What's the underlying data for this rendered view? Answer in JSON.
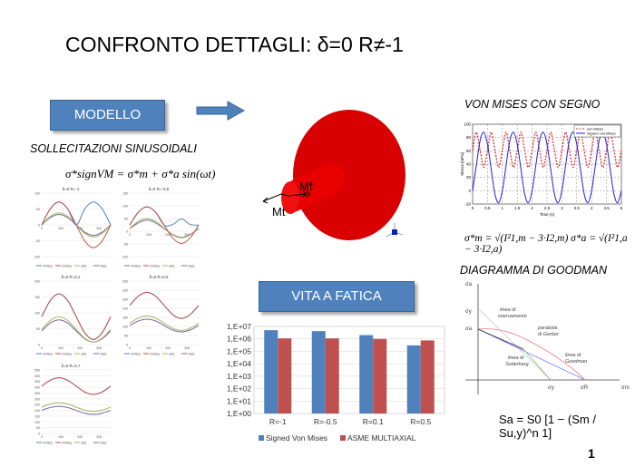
{
  "title": "CONFRONTO DETTAGLI: δ=0 R≠-1",
  "modello_label": "MODELLO",
  "sollecitazioni_label": "SOLLECITAZIONI SINUSOIDALI",
  "formula_signed": "σ*signVM = σ*m + σ*a sin(ωt)",
  "model_labels": {
    "mf": "Mf",
    "mt": "Mt"
  },
  "vita_label": "VITA A FATICA",
  "vonmises_label": "VON MISES CON SEGNO",
  "formula_vm": "σ*m = √(I²1,m − 3·I2,m)    σ*a = √(I²1,a − 3·I2,a)",
  "goodman_label": "DIAGRAMMA DI GOODMAN",
  "goodman": {
    "axis_y": "σa",
    "axis_x": "σm",
    "tick_y_top": "σy",
    "tick_y_mid": "σa",
    "tick_x_1": "σy",
    "tick_x_2": "σR",
    "line_snervamento": [
      "linea di",
      "snervamento"
    ],
    "parabola_gerber": [
      "parabola",
      "di Gerber"
    ],
    "linea_goodman": [
      "linea di",
      "Goodman"
    ],
    "linea_soderberg": [
      "linea di",
      "Soderberg"
    ],
    "formula": "Sa = S0 [1 − (Sm / Su,y)^n 1]"
  },
  "page_number": "1",
  "colors": {
    "blue": "#4f81bd",
    "red": "#c0504d",
    "green": "#9bbb59",
    "purple": "#8064a2",
    "model_red": "#e00000"
  },
  "chart_data": [
    {
      "type": "bar",
      "yscale": "log",
      "categories": [
        "R=-1",
        "R=-0.5",
        "R=0.1",
        "R=0.5"
      ],
      "yticks": [
        "1,E+00",
        "1,E+01",
        "1,E+02",
        "1,E+03",
        "1,E+04",
        "1,E+05",
        "1,E+06",
        "1,E+07"
      ],
      "ylim": [
        1,
        10000000
      ],
      "legend_position": "bottom",
      "series": [
        {
          "name": "Signed Von Mises",
          "values": [
            5000000,
            4200000,
            2000000,
            300000
          ]
        },
        {
          "name": "ASME MULTIAXIAL",
          "values": [
            1100000,
            1100000,
            1000000,
            750000
          ]
        }
      ]
    },
    {
      "type": "line",
      "xlabel": "Time (s)",
      "ylabel": "Stress [mPa]",
      "xlim": [
        0,
        5
      ],
      "ylim": [
        -20,
        100
      ],
      "xticks": [
        "0",
        "0.5",
        "1",
        "1.5",
        "2",
        "2.5",
        "3",
        "3.5",
        "4",
        "4.5",
        "5"
      ],
      "yticks": [
        "-20",
        "0",
        "20",
        "40",
        "60",
        "80",
        "100"
      ],
      "grid": true,
      "legend_position": "top-right",
      "x": [
        0,
        0.125,
        0.25,
        0.375,
        0.5,
        0.625,
        0.75,
        0.875,
        1,
        1.125,
        1.25,
        1.375,
        1.5,
        1.625,
        1.75,
        1.875,
        2,
        2.125,
        2.25,
        2.375,
        2.5,
        2.625,
        2.75,
        2.875,
        3,
        3.125,
        3.25,
        3.375,
        3.5,
        3.625,
        3.75,
        3.875,
        4,
        4.125,
        4.25,
        4.375,
        4.5,
        4.625,
        4.75,
        4.875,
        5
      ],
      "series": [
        {
          "name": "von Mises",
          "values": [
            61,
            88,
            61,
            35,
            61,
            88,
            61,
            35,
            61,
            88,
            61,
            35,
            61,
            88,
            61,
            35,
            61,
            88,
            61,
            35,
            61,
            88,
            61,
            35,
            61,
            88,
            61,
            35,
            61,
            88,
            61,
            35,
            61,
            88,
            61,
            35,
            61,
            88,
            61,
            35,
            61
          ]
        },
        {
          "name": "Signed von Mises",
          "values": [
            0,
            38,
            75,
            88,
            70,
            32,
            -5,
            -18,
            0,
            38,
            75,
            88,
            70,
            32,
            -5,
            -18,
            0,
            38,
            75,
            88,
            70,
            32,
            -5,
            -18,
            0,
            38,
            75,
            88,
            70,
            32,
            -5,
            -18,
            0,
            38,
            75,
            88,
            70,
            32,
            -5,
            -18,
            0
          ]
        }
      ]
    },
    {
      "type": "line",
      "title": "δ=0 R=-1",
      "ylim": [
        -100,
        100
      ],
      "yticks": [
        "-100",
        "-50",
        "0",
        "50",
        "100"
      ],
      "xticks": [
        "0",
        "100",
        "200",
        "300"
      ],
      "x": [
        0,
        45,
        90,
        135,
        180,
        225,
        270,
        315,
        360
      ],
      "series": [
        {
          "name": "σVM(t)",
          "values": [
            0,
            51,
            72,
            51,
            0,
            51,
            72,
            51,
            0
          ]
        },
        {
          "name": "σVMeq",
          "values": [
            0,
            51,
            72,
            51,
            0,
            -51,
            -72,
            -51,
            0
          ]
        },
        {
          "name": "σI(t)",
          "values": [
            0,
            27,
            38,
            27,
            0,
            -27,
            -38,
            -27,
            0
          ]
        },
        {
          "name": "σII(t)",
          "values": [
            0,
            23,
            33,
            23,
            0,
            -23,
            -33,
            -23,
            0
          ]
        }
      ]
    },
    {
      "type": "line",
      "title": "δ=0 R=-0,5",
      "ylim": [
        -100,
        150
      ],
      "yticks": [
        "-100",
        "-50",
        "0",
        "50",
        "100",
        "150"
      ],
      "xticks": [
        "0",
        "100",
        "200",
        "300"
      ],
      "x": [
        0,
        45,
        90,
        135,
        180,
        225,
        270,
        315,
        360
      ],
      "series": [
        {
          "name": "σVM(t)",
          "values": [
            24,
            75,
            96,
            75,
            24,
            27,
            48,
            27,
            24
          ]
        },
        {
          "name": "σVMeq",
          "values": [
            24,
            75,
            96,
            75,
            24,
            -27,
            -48,
            -27,
            24
          ]
        },
        {
          "name": "σI(t)",
          "values": [
            12,
            39,
            50,
            39,
            12,
            -15,
            -26,
            -15,
            12
          ]
        },
        {
          "name": "σII(t)",
          "values": [
            10,
            33,
            44,
            33,
            10,
            -13,
            -24,
            -13,
            10
          ]
        }
      ]
    },
    {
      "type": "line",
      "title": "δ=0 R=0,1",
      "ylim": [
        0,
        200
      ],
      "yticks": [
        "0",
        "50",
        "100",
        "150",
        "200"
      ],
      "xticks": [
        "0",
        "100",
        "200",
        "300"
      ],
      "x": [
        0,
        45,
        90,
        135,
        180,
        225,
        270,
        315,
        360
      ],
      "series": [
        {
          "name": "σVM(t)",
          "values": [
            88,
            139,
            160,
            139,
            88,
            37,
            16,
            37,
            88
          ]
        },
        {
          "name": "σVMeq",
          "values": [
            88,
            139,
            160,
            139,
            88,
            37,
            16,
            37,
            88
          ]
        },
        {
          "name": "σI(t)",
          "values": [
            48,
            76,
            88,
            76,
            48,
            20,
            8,
            20,
            48
          ]
        },
        {
          "name": "σII(t)",
          "values": [
            43,
            68,
            78,
            68,
            43,
            18,
            8,
            18,
            43
          ]
        }
      ]
    },
    {
      "type": "line",
      "title": "δ=0 R=0,5",
      "ylim": [
        0,
        350
      ],
      "yticks": [
        "0",
        "50",
        "100",
        "150",
        "200",
        "250",
        "300",
        "350"
      ],
      "xticks": [
        "0",
        "100",
        "200",
        "300"
      ],
      "x": [
        0,
        45,
        90,
        135,
        180,
        225,
        270,
        315,
        360
      ],
      "series": [
        {
          "name": "σVM(t)",
          "values": [
            216,
            267,
            288,
            267,
            216,
            165,
            144,
            165,
            216
          ]
        },
        {
          "name": "σVMeq",
          "values": [
            216,
            267,
            288,
            267,
            216,
            165,
            144,
            165,
            216
          ]
        },
        {
          "name": "σI(t)",
          "values": [
            118,
            146,
            158,
            146,
            118,
            90,
            78,
            90,
            118
          ]
        },
        {
          "name": "σII(t)",
          "values": [
            105,
            130,
            140,
            130,
            105,
            80,
            70,
            80,
            105
          ]
        }
      ]
    },
    {
      "type": "line",
      "title": "δ=0 R=0,7",
      "ylim": [
        0,
        550
      ],
      "yticks": [
        "0",
        "50",
        "100",
        "150",
        "200",
        "250",
        "300",
        "350",
        "400",
        "450",
        "500",
        "550"
      ],
      "xticks": [
        "0",
        "100",
        "200",
        "300"
      ],
      "x": [
        0,
        45,
        90,
        135,
        180,
        225,
        270,
        315,
        360
      ],
      "series": [
        {
          "name": "σVM(t)",
          "values": [
            410,
            461,
            482,
            461,
            410,
            359,
            338,
            359,
            410
          ]
        },
        {
          "name": "σVMeq",
          "values": [
            410,
            461,
            482,
            461,
            410,
            359,
            338,
            359,
            410
          ]
        },
        {
          "name": "σI(t)",
          "values": [
            228,
            255,
            266,
            255,
            228,
            201,
            190,
            201,
            228
          ]
        },
        {
          "name": "σII(t)",
          "values": [
            200,
            225,
            235,
            225,
            200,
            175,
            165,
            175,
            200
          ]
        }
      ]
    }
  ]
}
